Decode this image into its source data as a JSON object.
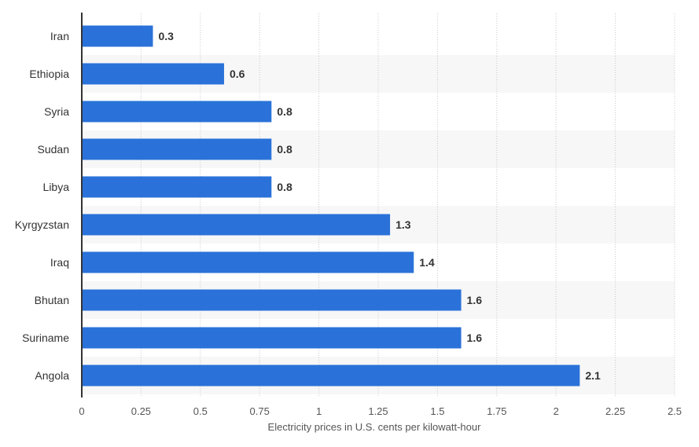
{
  "chart_data": {
    "type": "bar",
    "orientation": "horizontal",
    "categories": [
      "Iran",
      "Ethiopia",
      "Syria",
      "Sudan",
      "Libya",
      "Kyrgyzstan",
      "Iraq",
      "Bhutan",
      "Suriname",
      "Angola"
    ],
    "values": [
      0.3,
      0.6,
      0.8,
      0.8,
      0.8,
      1.3,
      1.4,
      1.6,
      1.6,
      2.1
    ],
    "value_labels": [
      "0.3",
      "0.6",
      "0.8",
      "0.8",
      "0.8",
      "1.3",
      "1.4",
      "1.6",
      "1.6",
      "2.1"
    ],
    "xlabel": "Electricity prices in U.S. cents per kilowatt-hour",
    "ylabel": "",
    "xlim": [
      0,
      2.5
    ],
    "xticks": [
      0,
      0.25,
      0.5,
      0.75,
      1,
      1.25,
      1.5,
      1.75,
      2,
      2.25,
      2.5
    ],
    "xtick_labels": [
      "0",
      "0.25",
      "0.5",
      "0.75",
      "1",
      "1.25",
      "1.5",
      "1.75",
      "2",
      "2.25",
      "2.5"
    ],
    "grid": "vertical dotted",
    "bar_color": "#2a72d9",
    "band_color": "#f7f7f7"
  }
}
